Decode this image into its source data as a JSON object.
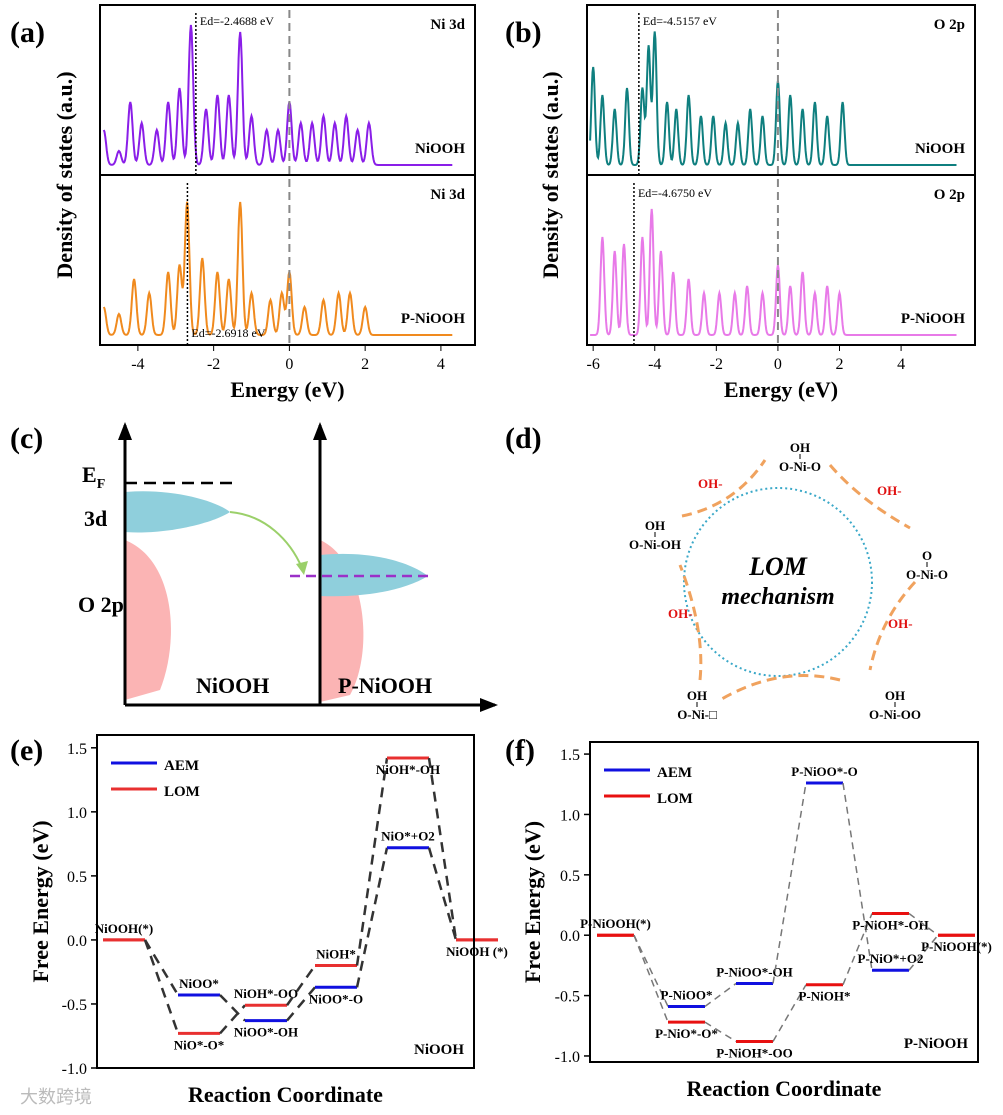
{
  "panels": {
    "a": "(a)",
    "b": "(b)",
    "c": "(c)",
    "d": "(d)",
    "e": "(e)",
    "f": "(f)"
  },
  "diagram_c": {
    "ef": "E",
    "ef_sub": "F",
    "d3": "3d",
    "o2p": "O 2p",
    "left": "NiOOH",
    "right": "P-NiOOH",
    "colors": {
      "d": "#8fcfdc",
      "o": "#fbb4b4",
      "arrow": "#9bd06a",
      "dash": "#9b30c8"
    }
  },
  "diagram_d": {
    "title1": "LOM",
    "title2": "mechanism",
    "oh": "OH-",
    "species": [
      {
        "top": "OH",
        "bottom": "O-Ni-O"
      },
      {
        "top": "O",
        "bottom": "O-Ni-O"
      },
      {
        "top": "OH",
        "bottom": "O-Ni-OO"
      },
      {
        "top": "OH",
        "bottom": "O-Ni-□"
      },
      {
        "top": "OH",
        "bottom": "O-Ni-OH"
      }
    ],
    "colors": {
      "arrow": "#f0a25e",
      "circle": "#3aa8c8",
      "oh": "#e01010"
    }
  },
  "watermark": "大数跨境",
  "chart_data": [
    {
      "panel": "a",
      "type": "line",
      "xlabel": "Energy (eV)",
      "ylabel": "Density of states (a.u.)",
      "xlim": [
        -5,
        4.9
      ],
      "xticks": [
        -4,
        -2,
        0,
        2,
        4
      ],
      "fermi": 0,
      "subplots": [
        {
          "orbital": "Ni 3d",
          "sample": "NiOOH",
          "color": "#8a1ee8",
          "ed": -2.4688,
          "ed_label": "Ed=-2.4688 eV",
          "peaks": [
            [
              -4.9,
              0.25
            ],
            [
              -4.5,
              0.1
            ],
            [
              -4.2,
              0.45
            ],
            [
              -3.9,
              0.3
            ],
            [
              -3.5,
              0.25
            ],
            [
              -3.2,
              0.45
            ],
            [
              -2.9,
              0.55
            ],
            [
              -2.6,
              1.0
            ],
            [
              -2.2,
              0.4
            ],
            [
              -1.9,
              0.5
            ],
            [
              -1.6,
              0.5
            ],
            [
              -1.3,
              0.95
            ],
            [
              -1.0,
              0.35
            ],
            [
              -0.6,
              0.25
            ],
            [
              -0.3,
              0.25
            ],
            [
              0,
              0.45
            ],
            [
              0.3,
              0.3
            ],
            [
              0.6,
              0.3
            ],
            [
              0.9,
              0.35
            ],
            [
              1.2,
              0.3
            ],
            [
              1.5,
              0.35
            ],
            [
              1.8,
              0.25
            ],
            [
              2.1,
              0.3
            ]
          ]
        },
        {
          "orbital": "Ni 3d",
          "sample": "P-NiOOH",
          "color": "#f08a1e",
          "ed": -2.6918,
          "ed_label": "Ed=-2.6918 eV",
          "peaks": [
            [
              -4.9,
              0.2
            ],
            [
              -4.5,
              0.15
            ],
            [
              -4.1,
              0.4
            ],
            [
              -3.7,
              0.3
            ],
            [
              -3.2,
              0.45
            ],
            [
              -2.9,
              0.5
            ],
            [
              -2.7,
              0.95
            ],
            [
              -2.3,
              0.55
            ],
            [
              -1.9,
              0.45
            ],
            [
              -1.6,
              0.4
            ],
            [
              -1.3,
              0.95
            ],
            [
              -1.0,
              0.3
            ],
            [
              -0.5,
              0.25
            ],
            [
              -0.2,
              0.3
            ],
            [
              0,
              0.45
            ],
            [
              0.4,
              0.2
            ],
            [
              0.9,
              0.25
            ],
            [
              1.3,
              0.3
            ],
            [
              1.6,
              0.3
            ],
            [
              2.0,
              0.2
            ]
          ]
        }
      ]
    },
    {
      "panel": "b",
      "type": "line",
      "xlabel": "Energy (eV)",
      "ylabel": "Density of states (a.u.)",
      "xlim": [
        -6.2,
        6.4
      ],
      "xticks": [
        -6,
        -4,
        -2,
        0,
        2,
        4
      ],
      "fermi": 0,
      "subplots": [
        {
          "orbital": "O 2p",
          "sample": "NiOOH",
          "color": "#0f7f7f",
          "ed": -4.5157,
          "ed_label": "Ed=-4.5157 eV",
          "peaks": [
            [
              -6.0,
              0.7
            ],
            [
              -5.7,
              0.5
            ],
            [
              -5.3,
              0.4
            ],
            [
              -4.9,
              0.55
            ],
            [
              -4.4,
              0.55
            ],
            [
              -4.2,
              0.85
            ],
            [
              -4.0,
              0.95
            ],
            [
              -3.6,
              0.45
            ],
            [
              -3.3,
              0.4
            ],
            [
              -2.9,
              0.5
            ],
            [
              -2.5,
              0.35
            ],
            [
              -2.1,
              0.35
            ],
            [
              -1.7,
              0.3
            ],
            [
              -1.3,
              0.3
            ],
            [
              -0.9,
              0.4
            ],
            [
              -0.5,
              0.35
            ],
            [
              0,
              0.6
            ],
            [
              0.4,
              0.5
            ],
            [
              0.8,
              0.4
            ],
            [
              1.2,
              0.45
            ],
            [
              1.6,
              0.35
            ],
            [
              2.1,
              0.45
            ]
          ]
        },
        {
          "orbital": "O 2p",
          "sample": "P-NiOOH",
          "color": "#e87ae8",
          "ed": -4.675,
          "ed_label": "Ed=-4.6750 eV",
          "peaks": [
            [
              -5.7,
              0.7
            ],
            [
              -5.3,
              0.6
            ],
            [
              -5.0,
              0.65
            ],
            [
              -4.4,
              0.7
            ],
            [
              -4.1,
              0.9
            ],
            [
              -3.8,
              0.6
            ],
            [
              -3.4,
              0.45
            ],
            [
              -2.9,
              0.4
            ],
            [
              -2.4,
              0.3
            ],
            [
              -1.9,
              0.3
            ],
            [
              -1.4,
              0.3
            ],
            [
              -1.0,
              0.35
            ],
            [
              -0.5,
              0.3
            ],
            [
              0,
              0.5
            ],
            [
              0.4,
              0.35
            ],
            [
              0.8,
              0.45
            ],
            [
              1.2,
              0.3
            ],
            [
              1.6,
              0.35
            ],
            [
              2.0,
              0.3
            ]
          ]
        }
      ]
    },
    {
      "panel": "e",
      "type": "line",
      "title": "NiOOH",
      "xlabel": "Reaction Coordinate",
      "ylabel": "Free Energy (eV)",
      "ylim": [
        -1.0,
        1.6
      ],
      "yticks": [
        1.5,
        1.0,
        0.5,
        0.0,
        -0.5,
        -1.0
      ],
      "ytick_labels": [
        "1.5",
        "1.0",
        "0.5",
        "0.0",
        "-0.5",
        "-1.0"
      ],
      "series": [
        {
          "name": "AEM",
          "color": "#1010e0",
          "values": [
            0,
            -0.43,
            -0.63,
            -0.37,
            0.72,
            0
          ],
          "labels": [
            "NiOOH(*)",
            "NiOO*",
            "NiOO*-OH",
            "NiOO*-O",
            "NiO*+O2",
            "NiOOH (*)"
          ]
        },
        {
          "name": "LOM",
          "color": "#e83030",
          "values": [
            0,
            -0.73,
            -0.51,
            -0.2,
            1.42,
            0
          ],
          "labels": [
            "",
            "NiO*-O*",
            "NiOH*-OO",
            "NiOH*",
            "NiOH*-OH",
            ""
          ]
        }
      ]
    },
    {
      "panel": "f",
      "type": "line",
      "title": "P-NiOOH",
      "xlabel": "Reaction Coordinate",
      "ylabel": "Free Energy (eV)",
      "ylim": [
        -1.05,
        1.6
      ],
      "yticks": [
        1.5,
        1.0,
        0.5,
        0.0,
        -0.5,
        -1.0
      ],
      "ytick_labels": [
        "1.5",
        "1.0",
        "0.5",
        "0.0",
        "-0.5",
        "-1.0"
      ],
      "series": [
        {
          "name": "AEM",
          "color": "#1010e0",
          "values": [
            0,
            -0.59,
            -0.4,
            1.26,
            -0.29,
            0
          ],
          "labels": [
            "P-NiOOH(*)",
            "P-NiOO*",
            "P-NiOO*-OH",
            "P-NiOO*-O",
            "P-NiO*+O2",
            "P-NiOOH(*)"
          ]
        },
        {
          "name": "LOM",
          "color": "#e81010",
          "values": [
            0,
            -0.72,
            -0.88,
            -0.41,
            0.18,
            0
          ],
          "labels": [
            "",
            "P-NiO*-O*",
            "P-NiOH*-OO",
            "P-NiOH*",
            "P-NiOH*-OH",
            ""
          ]
        }
      ]
    }
  ]
}
